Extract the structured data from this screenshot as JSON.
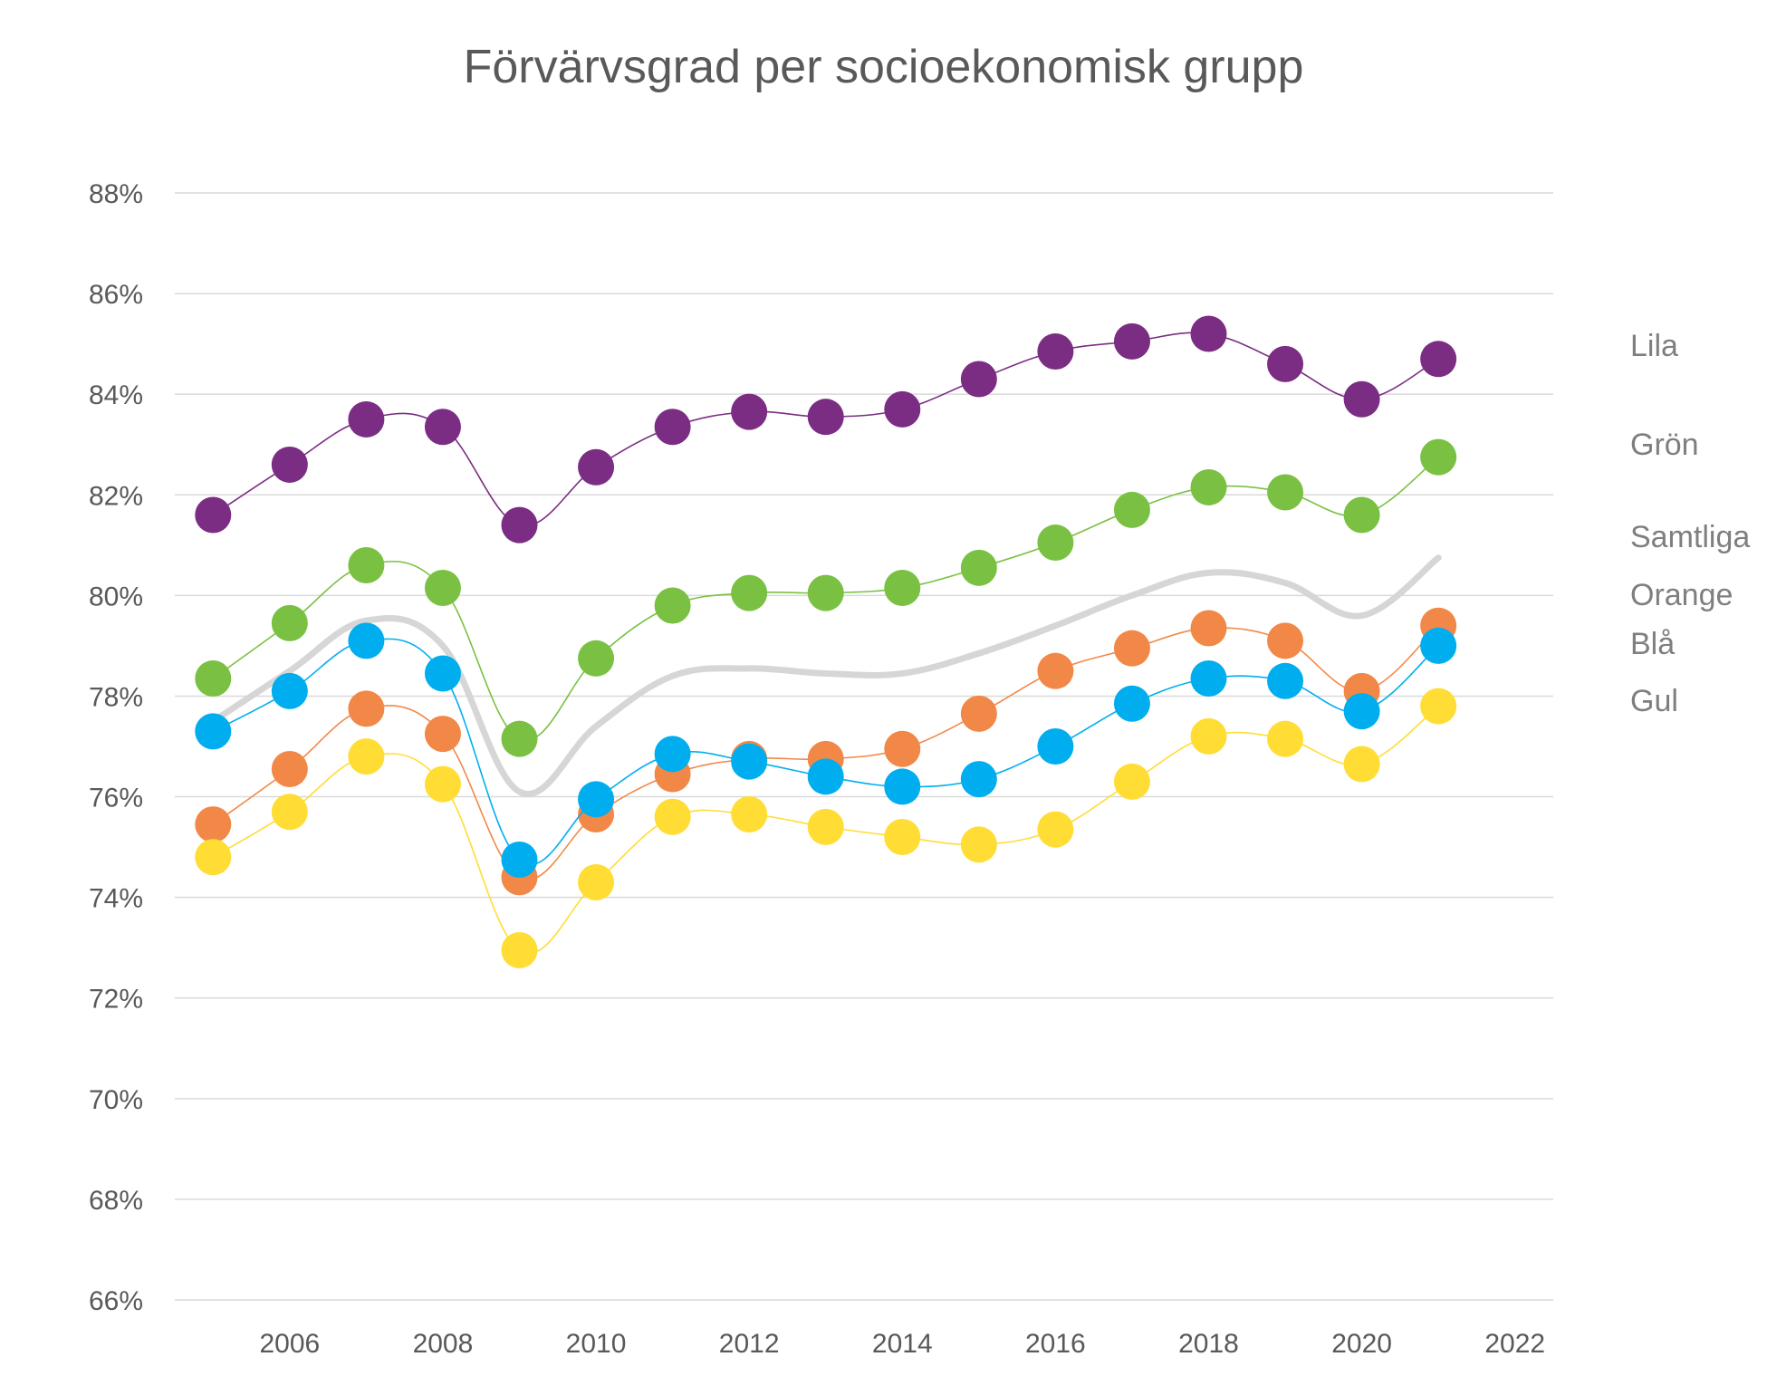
{
  "chart_data": {
    "type": "line",
    "title": "Förvärvsgrad per socioekonomisk grupp",
    "xlabel": "",
    "ylabel": "",
    "x": [
      2005,
      2006,
      2007,
      2008,
      2009,
      2010,
      2011,
      2012,
      2013,
      2014,
      2015,
      2016,
      2017,
      2018,
      2019,
      2020,
      2021
    ],
    "x_ticks": [
      2006,
      2008,
      2010,
      2012,
      2014,
      2016,
      2018,
      2020,
      2022
    ],
    "x_tick_labels": [
      "2006",
      "2008",
      "2010",
      "2012",
      "2014",
      "2016",
      "2018",
      "2020",
      "2022"
    ],
    "xlim": [
      2004.5,
      2022.5
    ],
    "ylim": [
      66,
      88
    ],
    "y_ticks": [
      66,
      68,
      70,
      72,
      74,
      76,
      78,
      80,
      82,
      84,
      86,
      88
    ],
    "y_tick_labels": [
      "66%",
      "68%",
      "70%",
      "72%",
      "74%",
      "76%",
      "78%",
      "80%",
      "82%",
      "84%",
      "86%",
      "88%"
    ],
    "grid": "horizontal",
    "legend": "right, labels beside series ends",
    "series": [
      {
        "name": "Lila",
        "color": "#7B2D83",
        "markers": true,
        "values": [
          81.6,
          82.6,
          83.5,
          83.35,
          81.4,
          82.55,
          83.35,
          83.65,
          83.55,
          83.7,
          84.3,
          84.85,
          85.05,
          85.2,
          84.6,
          83.9,
          84.7
        ]
      },
      {
        "name": "Grön",
        "color": "#7AC143",
        "markers": true,
        "values": [
          78.35,
          79.45,
          80.6,
          80.15,
          77.15,
          78.75,
          79.8,
          80.05,
          80.05,
          80.15,
          80.55,
          81.05,
          81.7,
          82.15,
          82.05,
          81.6,
          82.75
        ]
      },
      {
        "name": "Samtliga",
        "color": "#D6D6D6",
        "markers": false,
        "values": [
          77.5,
          78.5,
          79.5,
          79.0,
          76.1,
          77.4,
          78.4,
          78.55,
          78.45,
          78.45,
          78.85,
          79.4,
          80.0,
          80.45,
          80.25,
          79.6,
          80.75
        ]
      },
      {
        "name": "Orange",
        "color": "#F28848",
        "markers": true,
        "values": [
          75.45,
          76.55,
          77.75,
          77.25,
          74.4,
          75.65,
          76.45,
          76.75,
          76.75,
          76.95,
          77.65,
          78.5,
          78.95,
          79.35,
          79.1,
          78.1,
          79.4
        ]
      },
      {
        "name": "Blå",
        "color": "#00AEEF",
        "markers": true,
        "values": [
          77.3,
          78.1,
          79.1,
          78.45,
          74.75,
          75.95,
          76.85,
          76.7,
          76.4,
          76.2,
          76.35,
          77.0,
          77.85,
          78.35,
          78.3,
          77.7,
          79.0
        ]
      },
      {
        "name": "Gul",
        "color": "#FFDD35",
        "markers": true,
        "values": [
          74.8,
          75.7,
          76.8,
          76.25,
          72.95,
          74.3,
          75.6,
          75.65,
          75.4,
          75.2,
          75.05,
          75.35,
          76.3,
          77.2,
          77.15,
          76.65,
          77.8
        ]
      }
    ]
  }
}
